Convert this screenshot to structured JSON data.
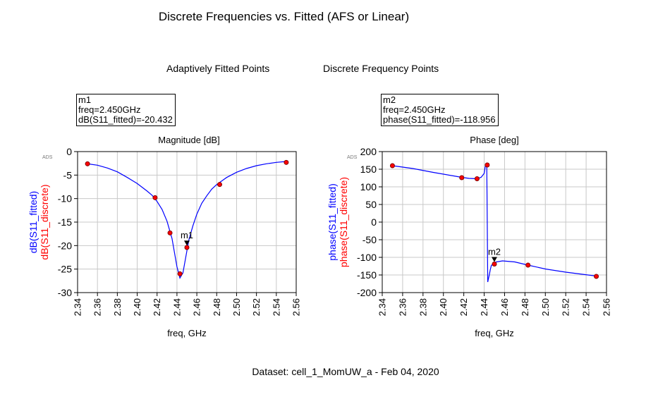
{
  "page": {
    "title": "Discrete Frequencies vs. Fitted (AFS or Linear)",
    "legend": {
      "fitted_label": "Adaptively Fitted Points",
      "fitted_color": "#0000ff",
      "discrete_label": "Discrete Frequency Points",
      "discrete_color": "#ff0000"
    },
    "dataset": "Dataset: cell_1_MomUW_a - Feb 04, 2020",
    "ads_tag": "ADS"
  },
  "chart_data": [
    {
      "type": "line",
      "title": "Magnitude [dB]",
      "xlabel": "freq, GHz",
      "ylabel_fitted": "dB(S11_fitted)",
      "ylabel_discrete": "dB(S11_discrete)",
      "xlim": [
        2.34,
        2.56
      ],
      "ylim": [
        -30,
        0
      ],
      "xticks": [
        "2.34",
        "2.36",
        "2.38",
        "2.40",
        "2.42",
        "2.44",
        "2.46",
        "2.48",
        "2.50",
        "2.52",
        "2.54",
        "2.56"
      ],
      "yticks": [
        "0",
        "-5",
        "-10",
        "-15",
        "-20",
        "-25",
        "-30"
      ],
      "grid": true,
      "series": [
        {
          "name": "dB(S11_fitted)",
          "color": "#0000ff",
          "x": [
            2.35,
            2.36,
            2.37,
            2.38,
            2.39,
            2.4,
            2.41,
            2.415,
            2.42,
            2.425,
            2.43,
            2.435,
            2.44,
            2.443,
            2.446,
            2.449,
            2.452,
            2.456,
            2.46,
            2.465,
            2.47,
            2.475,
            2.48,
            2.49,
            2.5,
            2.51,
            2.52,
            2.53,
            2.54,
            2.55
          ],
          "y": [
            -2.6,
            -2.9,
            -3.5,
            -4.3,
            -5.5,
            -6.8,
            -8.4,
            -9.3,
            -10.6,
            -12.3,
            -14.8,
            -18.5,
            -24.5,
            -26.9,
            -25.8,
            -22.3,
            -18.8,
            -15.8,
            -13.3,
            -11.0,
            -9.4,
            -8.0,
            -7.0,
            -5.5,
            -4.4,
            -3.6,
            -3.0,
            -2.6,
            -2.3,
            -2.1
          ]
        },
        {
          "name": "dB(S11_discrete)",
          "color": "#ff0000",
          "x": [
            2.35,
            2.418,
            2.433,
            2.443,
            2.45,
            2.483,
            2.55
          ],
          "y": [
            -2.6,
            -9.8,
            -17.3,
            -26.0,
            -20.4,
            -7.0,
            -2.3
          ]
        }
      ],
      "marker": {
        "name": "m1",
        "lines": [
          "m1",
          "freq=2.450GHz",
          "dB(S11_fitted)=-20.432"
        ],
        "x": 2.45,
        "y": -20.432
      }
    },
    {
      "type": "line",
      "title": "Phase [deg]",
      "xlabel": "freq, GHz",
      "ylabel_fitted": "phase(S11_fitted)",
      "ylabel_discrete": "phase(S11_discrete)",
      "xlim": [
        2.34,
        2.56
      ],
      "ylim": [
        -200,
        200
      ],
      "xticks": [
        "2.34",
        "2.36",
        "2.38",
        "2.40",
        "2.42",
        "2.44",
        "2.46",
        "2.48",
        "2.50",
        "2.52",
        "2.54",
        "2.56"
      ],
      "yticks": [
        "200",
        "150",
        "100",
        "50",
        "0",
        "-50",
        "-100",
        "-150",
        "-200"
      ],
      "grid": true,
      "series": [
        {
          "name": "phase(S11_fitted)",
          "color": "#0000ff",
          "x": [
            2.35,
            2.37,
            2.39,
            2.41,
            2.418,
            2.425,
            2.433,
            2.437,
            2.44,
            2.441,
            2.4425,
            2.443,
            2.4435,
            2.444,
            2.445,
            2.446,
            2.447,
            2.449,
            2.452,
            2.458,
            2.47,
            2.483,
            2.5,
            2.52,
            2.55
          ],
          "y": [
            160,
            152,
            141,
            131,
            127,
            124,
            123,
            127,
            138,
            157,
            168,
            0,
            -170,
            -163,
            -150,
            -135,
            -123,
            -118,
            -113,
            -110,
            -113,
            -122,
            -133,
            -142,
            -153
          ]
        },
        {
          "name": "phase(S11_discrete)",
          "color": "#ff0000",
          "x": [
            2.35,
            2.418,
            2.433,
            2.443,
            2.45,
            2.483,
            2.55
          ],
          "y": [
            160,
            126,
            123,
            162,
            -118.956,
            -122,
            -154
          ]
        }
      ],
      "marker": {
        "name": "m2",
        "lines": [
          "m2",
          "freq=2.450GHz",
          "phase(S11_fitted)=-118.956"
        ],
        "x": 2.45,
        "y": -118.956
      }
    }
  ]
}
